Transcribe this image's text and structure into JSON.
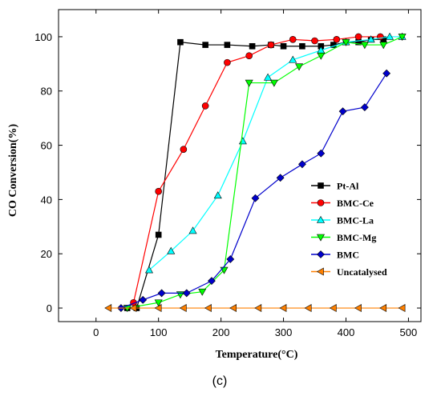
{
  "chart_data": {
    "type": "line",
    "xlabel": "Temperature(°C)",
    "ylabel": "CO Conversion(%)",
    "caption": "(c)",
    "xlim": [
      -60,
      520
    ],
    "ylim": [
      -5,
      110
    ],
    "xticks": [
      0,
      100,
      200,
      300,
      400,
      500
    ],
    "yticks": [
      0,
      20,
      40,
      60,
      80,
      100
    ],
    "legend_position": "lower-right",
    "grid": false,
    "series": [
      {
        "name": "Pt-Al",
        "color": "#000000",
        "marker": "square",
        "x": [
          50,
          65,
          100,
          135,
          175,
          210,
          250,
          280,
          300,
          330,
          360,
          380,
          400,
          420,
          440,
          460
        ],
        "y": [
          0,
          0,
          27,
          98,
          97,
          97,
          96.5,
          97,
          96.5,
          96.5,
          96.5,
          97,
          98,
          98,
          99,
          99
        ]
      },
      {
        "name": "BMC-Ce",
        "color": "#ff0000",
        "marker": "circle",
        "x": [
          60,
          100,
          140,
          175,
          210,
          245,
          280,
          315,
          350,
          385,
          420,
          455
        ],
        "y": [
          2,
          43,
          58.5,
          74.5,
          90.5,
          93,
          97,
          99,
          98.5,
          99,
          100,
          100
        ]
      },
      {
        "name": "BMC-La",
        "color": "#00ffff",
        "marker": "triangle-up",
        "x": [
          85,
          120,
          155,
          195,
          235,
          275,
          315,
          360,
          400,
          440,
          470,
          490
        ],
        "y": [
          14,
          21,
          28.5,
          41.5,
          61.5,
          85,
          91.5,
          95,
          98,
          99,
          100,
          100
        ]
      },
      {
        "name": "BMC-Mg",
        "color": "#00ff00",
        "marker": "triangle-down",
        "x": [
          50,
          100,
          135,
          170,
          205,
          245,
          285,
          325,
          360,
          400,
          430,
          460,
          490
        ],
        "y": [
          0,
          2,
          5,
          6,
          14,
          83,
          83,
          89,
          93,
          98,
          97,
          97,
          100
        ]
      },
      {
        "name": "BMC",
        "color": "#0000cc",
        "marker": "diamond",
        "x": [
          40,
          75,
          105,
          145,
          185,
          215,
          255,
          295,
          330,
          360,
          395,
          430,
          465
        ],
        "y": [
          0,
          3,
          5.5,
          5.5,
          10,
          18,
          40.5,
          48,
          53,
          57,
          72.5,
          74,
          86.5
        ]
      },
      {
        "name": "Uncatalysed",
        "color": "#ff8000",
        "marker": "triangle-left",
        "x": [
          20,
          60,
          100,
          140,
          180,
          220,
          260,
          300,
          340,
          380,
          420,
          460,
          490
        ],
        "y": [
          0,
          0,
          0,
          0,
          0,
          0,
          0,
          0,
          0,
          0,
          0,
          0,
          0
        ]
      }
    ]
  }
}
